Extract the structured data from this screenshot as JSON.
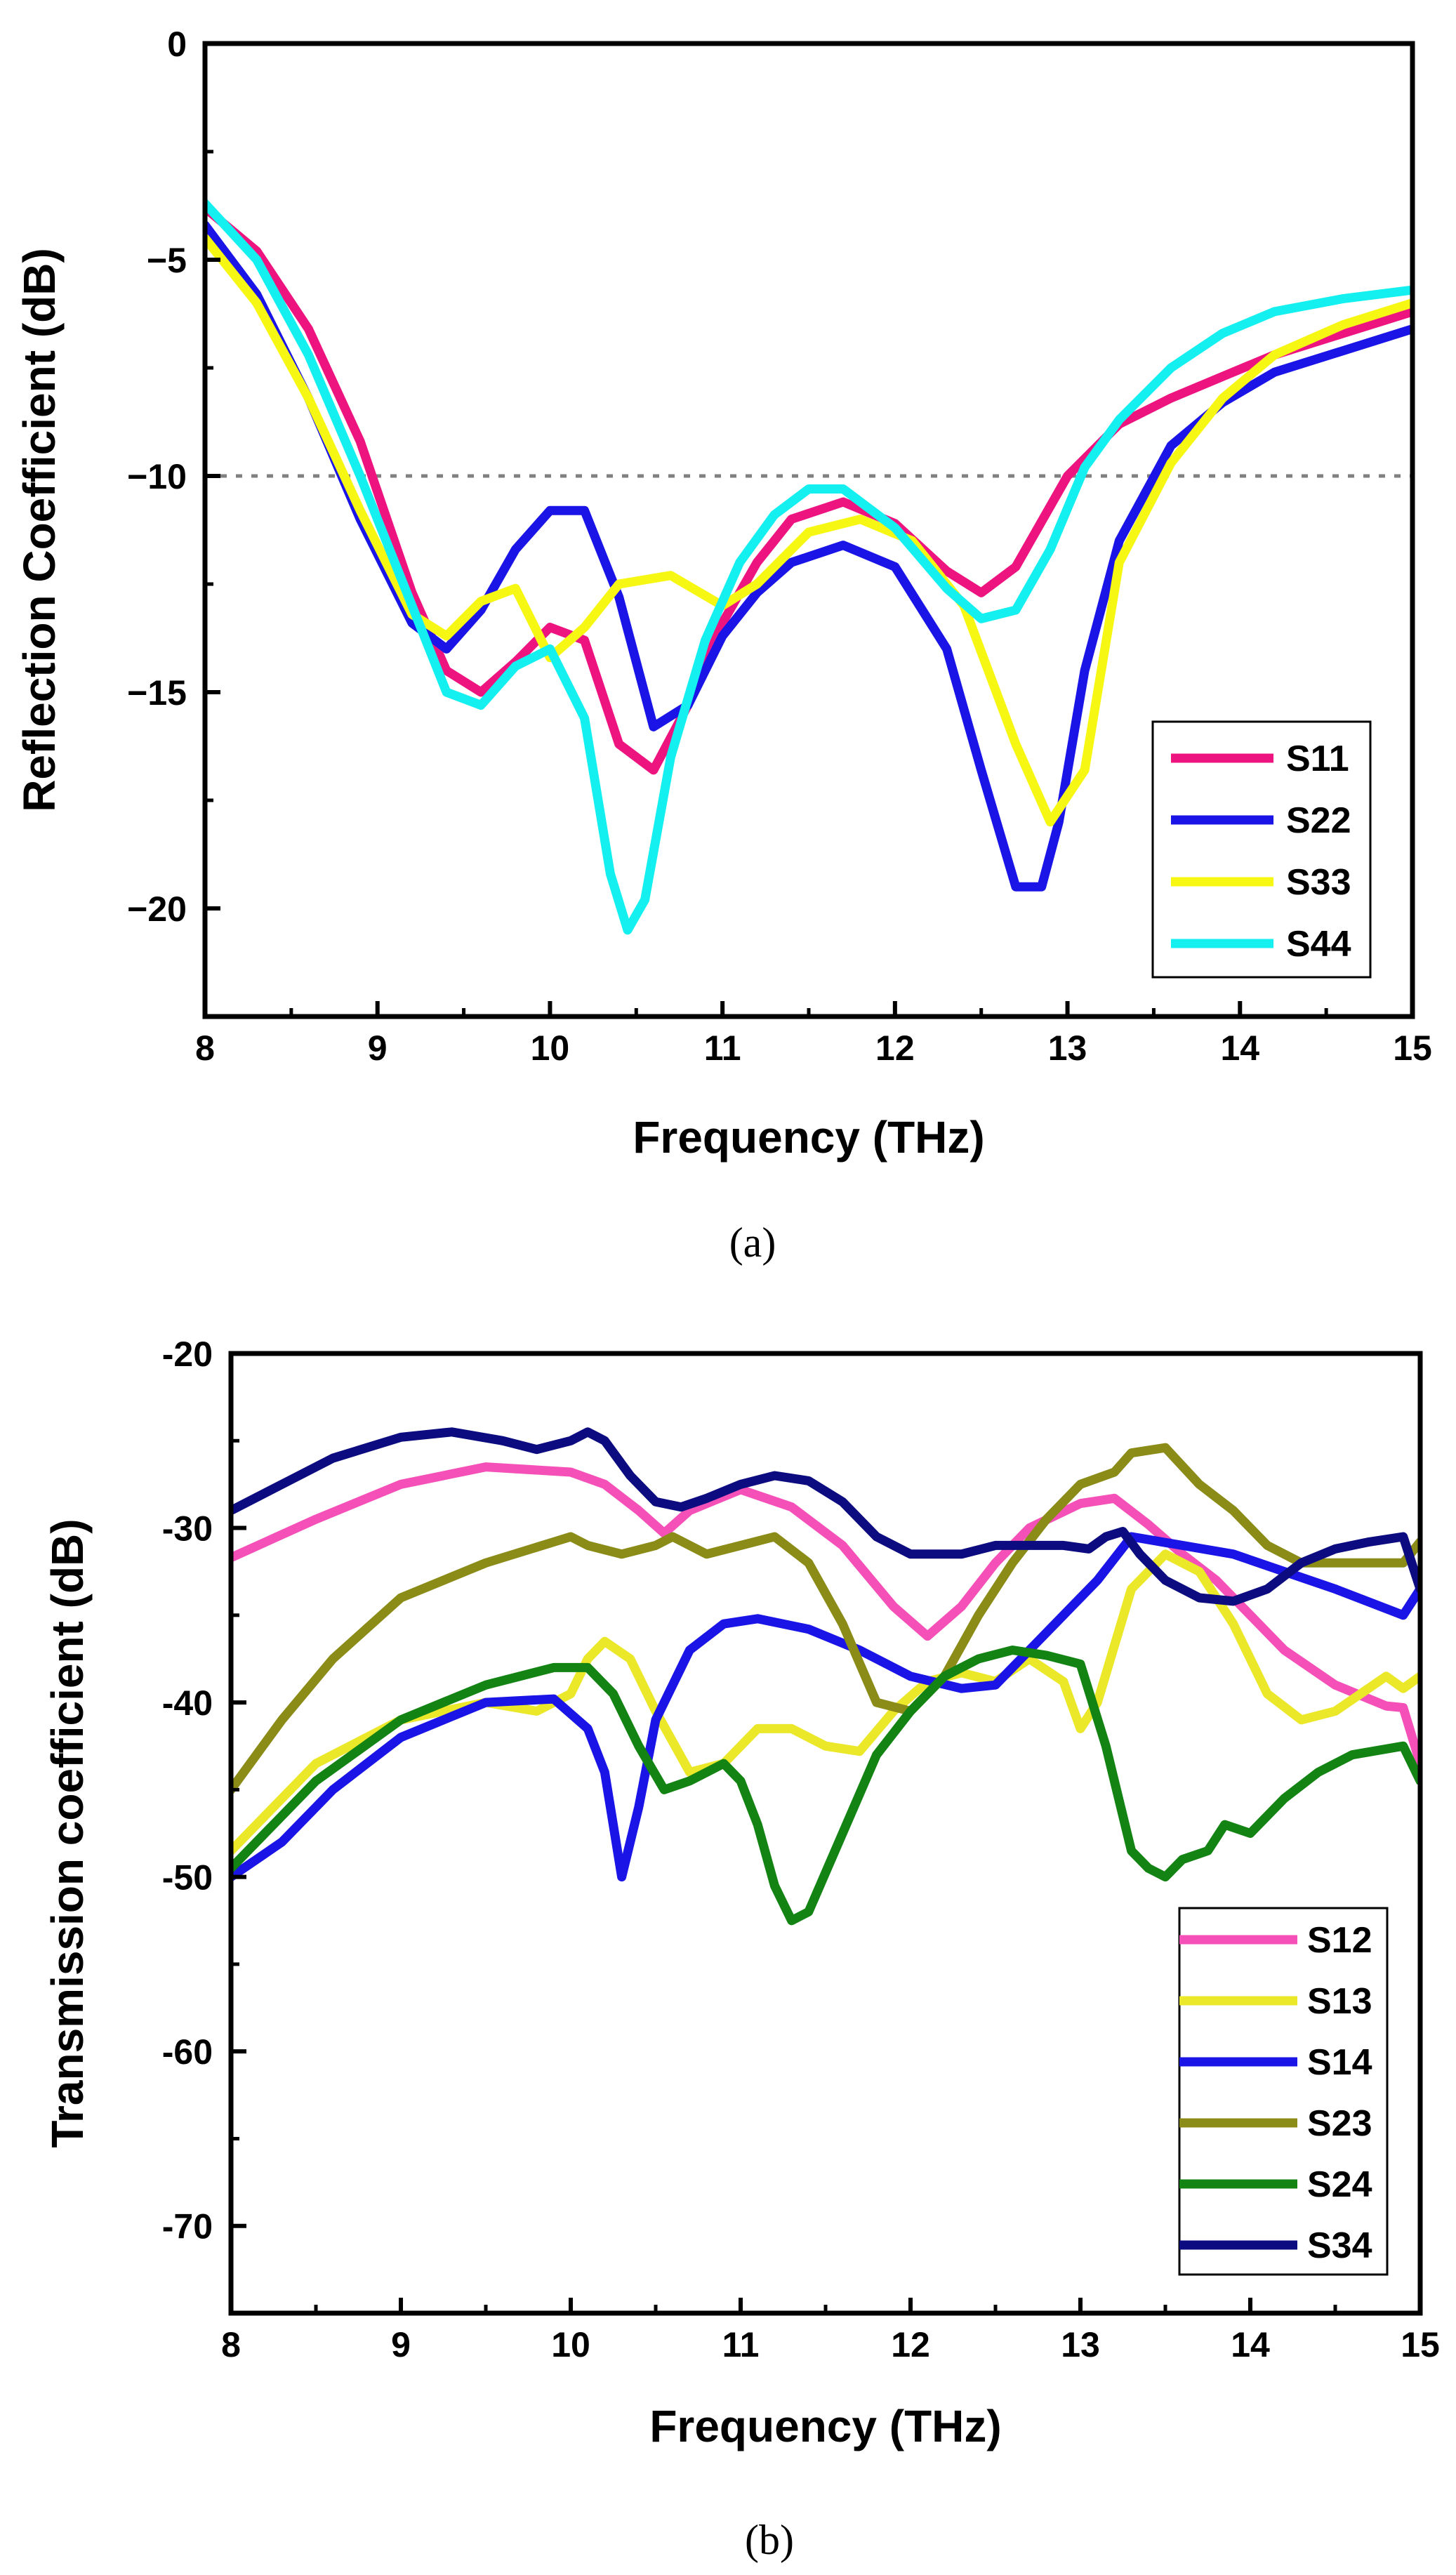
{
  "chart_data": [
    {
      "type": "line",
      "caption": "(a)",
      "xlabel": "Frequency (THz)",
      "ylabel": "Reflection Coefficient (dB)",
      "xlim": [
        8,
        15
      ],
      "ylim": [
        -22.5,
        0
      ],
      "xticks": [
        8,
        9,
        10,
        11,
        12,
        13,
        14,
        15
      ],
      "yticks": [
        0,
        -5,
        -10,
        -15,
        -20
      ],
      "ytick_labels": [
        "0",
        "−5",
        "−10",
        "−15",
        "−20"
      ],
      "reference_line": -10,
      "legend_position": "bottom-right",
      "series": [
        {
          "name": "S11",
          "color": "#ee1480",
          "x": [
            8.0,
            8.3,
            8.6,
            8.9,
            9.2,
            9.4,
            9.6,
            9.8,
            10.0,
            10.2,
            10.4,
            10.6,
            10.8,
            11.0,
            11.2,
            11.4,
            11.7,
            12.0,
            12.3,
            12.5,
            12.7,
            13.0,
            13.3,
            13.6,
            13.9,
            14.2,
            14.6,
            15.0
          ],
          "y": [
            -3.8,
            -4.8,
            -6.6,
            -9.2,
            -12.7,
            -14.5,
            -15.0,
            -14.3,
            -13.5,
            -13.8,
            -16.2,
            -16.8,
            -15.3,
            -13.4,
            -12.0,
            -11.0,
            -10.6,
            -11.1,
            -12.2,
            -12.7,
            -12.1,
            -10.0,
            -8.8,
            -8.2,
            -7.7,
            -7.2,
            -6.7,
            -6.2
          ]
        },
        {
          "name": "S22",
          "color": "#1a14e6",
          "x": [
            8.0,
            8.3,
            8.6,
            8.9,
            9.2,
            9.4,
            9.6,
            9.8,
            10.0,
            10.2,
            10.4,
            10.6,
            10.8,
            11.0,
            11.2,
            11.4,
            11.7,
            12.0,
            12.3,
            12.5,
            12.7,
            12.85,
            12.95,
            13.1,
            13.3,
            13.6,
            13.9,
            14.2,
            14.6,
            15.0
          ],
          "y": [
            -4.2,
            -5.8,
            -8.2,
            -11.0,
            -13.4,
            -14.0,
            -13.1,
            -11.7,
            -10.8,
            -10.8,
            -12.8,
            -15.8,
            -15.3,
            -13.7,
            -12.7,
            -12.0,
            -11.6,
            -12.1,
            -14.0,
            -16.8,
            -19.5,
            -19.5,
            -18.0,
            -14.5,
            -11.5,
            -9.3,
            -8.3,
            -7.6,
            -7.1,
            -6.6
          ]
        },
        {
          "name": "S33",
          "color": "#f7f714",
          "x": [
            8.0,
            8.3,
            8.6,
            8.9,
            9.2,
            9.4,
            9.6,
            9.8,
            10.0,
            10.2,
            10.4,
            10.7,
            11.0,
            11.2,
            11.5,
            11.8,
            12.1,
            12.4,
            12.7,
            12.9,
            13.1,
            13.3,
            13.6,
            13.9,
            14.2,
            14.6,
            15.0
          ],
          "y": [
            -4.5,
            -6.0,
            -8.2,
            -10.8,
            -13.2,
            -13.7,
            -12.9,
            -12.6,
            -14.2,
            -13.5,
            -12.5,
            -12.3,
            -13.0,
            -12.5,
            -11.3,
            -11.0,
            -11.5,
            -13.0,
            -16.2,
            -18.0,
            -16.8,
            -12.0,
            -9.7,
            -8.2,
            -7.2,
            -6.5,
            -6.0
          ]
        },
        {
          "name": "S44",
          "color": "#14f0f0",
          "x": [
            8.0,
            8.3,
            8.6,
            8.9,
            9.2,
            9.4,
            9.6,
            9.8,
            10.0,
            10.2,
            10.35,
            10.45,
            10.55,
            10.7,
            10.9,
            11.1,
            11.3,
            11.5,
            11.7,
            12.0,
            12.3,
            12.5,
            12.7,
            12.9,
            13.1,
            13.3,
            13.6,
            13.9,
            14.2,
            14.6,
            15.0
          ],
          "y": [
            -3.7,
            -5.0,
            -7.2,
            -10.0,
            -13.0,
            -15.0,
            -15.3,
            -14.4,
            -14.0,
            -15.6,
            -19.2,
            -20.5,
            -19.8,
            -16.5,
            -13.8,
            -12.0,
            -10.9,
            -10.3,
            -10.3,
            -11.2,
            -12.6,
            -13.3,
            -13.1,
            -11.7,
            -9.8,
            -8.7,
            -7.5,
            -6.7,
            -6.2,
            -5.9,
            -5.7
          ]
        }
      ]
    },
    {
      "type": "line",
      "caption": "(b)",
      "xlabel": "Frequency (THz)",
      "ylabel": "Transmission coefficient (dB)",
      "xlim": [
        8,
        15
      ],
      "ylim": [
        -75,
        -20
      ],
      "xticks": [
        8,
        9,
        10,
        11,
        12,
        13,
        14,
        15
      ],
      "yticks": [
        -20,
        -30,
        -40,
        -50,
        -60,
        -70
      ],
      "ytick_labels": [
        "-20",
        "-30",
        "-40",
        "-50",
        "-60",
        "-70"
      ],
      "legend_position": "bottom-right",
      "series": [
        {
          "name": "S12",
          "color": "#f550b8",
          "x": [
            8.0,
            8.5,
            9.0,
            9.5,
            10.0,
            10.2,
            10.4,
            10.55,
            10.7,
            11.0,
            11.3,
            11.6,
            11.9,
            12.1,
            12.3,
            12.5,
            12.7,
            13.0,
            13.2,
            13.4,
            13.6,
            13.8,
            14.0,
            14.2,
            14.5,
            14.8,
            14.9,
            15.0
          ],
          "y": [
            -31.7,
            -29.5,
            -27.5,
            -26.5,
            -26.8,
            -27.5,
            -29.0,
            -30.3,
            -29.0,
            -27.8,
            -28.8,
            -31.0,
            -34.5,
            -36.2,
            -34.5,
            -32.0,
            -30.0,
            -28.6,
            -28.3,
            -29.8,
            -31.5,
            -33.0,
            -35.0,
            -37.0,
            -39.0,
            -40.2,
            -40.3,
            -43.5
          ]
        },
        {
          "name": "S13",
          "color": "#ebe82a",
          "x": [
            8.0,
            8.5,
            9.0,
            9.5,
            9.8,
            10.0,
            10.1,
            10.2,
            10.35,
            10.5,
            10.7,
            10.9,
            11.1,
            11.3,
            11.5,
            11.7,
            11.9,
            12.1,
            12.3,
            12.5,
            12.7,
            12.9,
            13.0,
            13.1,
            13.3,
            13.5,
            13.7,
            13.9,
            14.1,
            14.3,
            14.5,
            14.8,
            14.9,
            15.0
          ],
          "y": [
            -48.5,
            -43.5,
            -41.0,
            -40.0,
            -40.5,
            -39.5,
            -37.5,
            -36.5,
            -37.5,
            -40.5,
            -44.0,
            -43.5,
            -41.5,
            -41.5,
            -42.5,
            -42.8,
            -40.5,
            -38.8,
            -38.3,
            -38.8,
            -37.5,
            -38.8,
            -41.5,
            -40.0,
            -33.5,
            -31.5,
            -32.5,
            -35.5,
            -39.5,
            -41.0,
            -40.5,
            -38.5,
            -39.2,
            -38.5
          ]
        },
        {
          "name": "S14",
          "color": "#1a14e6",
          "x": [
            8.0,
            8.3,
            8.6,
            9.0,
            9.5,
            9.9,
            10.1,
            10.2,
            10.3,
            10.4,
            10.5,
            10.7,
            10.9,
            11.1,
            11.4,
            11.7,
            12.0,
            12.3,
            12.5,
            12.7,
            12.9,
            13.1,
            13.3,
            13.6,
            13.9,
            14.2,
            14.5,
            14.9,
            15.0
          ],
          "y": [
            -50.0,
            -48.0,
            -45.0,
            -42.0,
            -40.0,
            -39.8,
            -41.5,
            -44.0,
            -50.0,
            -46.0,
            -41.0,
            -37.0,
            -35.5,
            -35.2,
            -35.8,
            -37.0,
            -38.5,
            -39.2,
            -39.0,
            -37.0,
            -35.0,
            -33.0,
            -30.5,
            -31.0,
            -31.5,
            -32.5,
            -33.5,
            -35.0,
            -33.5
          ]
        },
        {
          "name": "S23",
          "color": "#8b8b18",
          "x": [
            8.0,
            8.3,
            8.6,
            9.0,
            9.5,
            9.9,
            10.0,
            10.1,
            10.3,
            10.5,
            10.6,
            10.8,
            11.0,
            11.2,
            11.4,
            11.6,
            11.8,
            12.0,
            12.2,
            12.4,
            12.6,
            12.8,
            13.0,
            13.2,
            13.3,
            13.5,
            13.7,
            13.9,
            14.1,
            14.3,
            14.6,
            14.9,
            15.0
          ],
          "y": [
            -45.0,
            -41.0,
            -37.5,
            -34.0,
            -32.0,
            -30.8,
            -30.5,
            -31.0,
            -31.5,
            -31.0,
            -30.5,
            -31.5,
            -31.0,
            -30.5,
            -32.0,
            -35.5,
            -40.0,
            -40.5,
            -38.5,
            -35.0,
            -32.0,
            -29.5,
            -27.5,
            -26.8,
            -25.7,
            -25.4,
            -27.5,
            -29.0,
            -31.0,
            -32.0,
            -32.0,
            -32.0,
            -30.8
          ]
        },
        {
          "name": "S24",
          "color": "#138313",
          "x": [
            8.0,
            8.5,
            9.0,
            9.5,
            9.9,
            10.1,
            10.25,
            10.4,
            10.55,
            10.7,
            10.9,
            11.0,
            11.1,
            11.2,
            11.3,
            11.4,
            11.6,
            11.8,
            12.0,
            12.2,
            12.4,
            12.6,
            12.8,
            13.0,
            13.15,
            13.3,
            13.4,
            13.5,
            13.6,
            13.75,
            13.85,
            14.0,
            14.2,
            14.4,
            14.6,
            14.9,
            15.0
          ],
          "y": [
            -49.5,
            -44.5,
            -41.0,
            -39.0,
            -38.0,
            -38.0,
            -39.5,
            -42.5,
            -45.0,
            -44.5,
            -43.5,
            -44.5,
            -47.0,
            -50.5,
            -52.5,
            -52.0,
            -47.5,
            -43.0,
            -40.5,
            -38.5,
            -37.5,
            -37.0,
            -37.3,
            -37.8,
            -42.5,
            -48.5,
            -49.5,
            -50.0,
            -49.0,
            -48.5,
            -47.0,
            -47.5,
            -45.5,
            -44.0,
            -43.0,
            -42.5,
            -44.5
          ]
        },
        {
          "name": "S34",
          "color": "#0c0c80",
          "x": [
            8.0,
            8.3,
            8.6,
            9.0,
            9.3,
            9.6,
            9.8,
            10.0,
            10.1,
            10.2,
            10.35,
            10.5,
            10.65,
            10.8,
            11.0,
            11.2,
            11.4,
            11.6,
            11.8,
            12.0,
            12.3,
            12.5,
            12.7,
            12.9,
            13.05,
            13.15,
            13.25,
            13.35,
            13.5,
            13.7,
            13.9,
            14.1,
            14.3,
            14.5,
            14.7,
            14.9,
            15.0
          ],
          "y": [
            -29.0,
            -27.5,
            -26.0,
            -24.8,
            -24.5,
            -25.0,
            -25.5,
            -25.0,
            -24.5,
            -25.0,
            -27.0,
            -28.5,
            -28.8,
            -28.3,
            -27.5,
            -27.0,
            -27.3,
            -28.5,
            -30.5,
            -31.5,
            -31.5,
            -31.0,
            -31.0,
            -31.0,
            -31.2,
            -30.5,
            -30.2,
            -31.5,
            -33.0,
            -34.0,
            -34.2,
            -33.5,
            -32.0,
            -31.2,
            -30.8,
            -30.5,
            -33.5
          ]
        }
      ]
    }
  ]
}
